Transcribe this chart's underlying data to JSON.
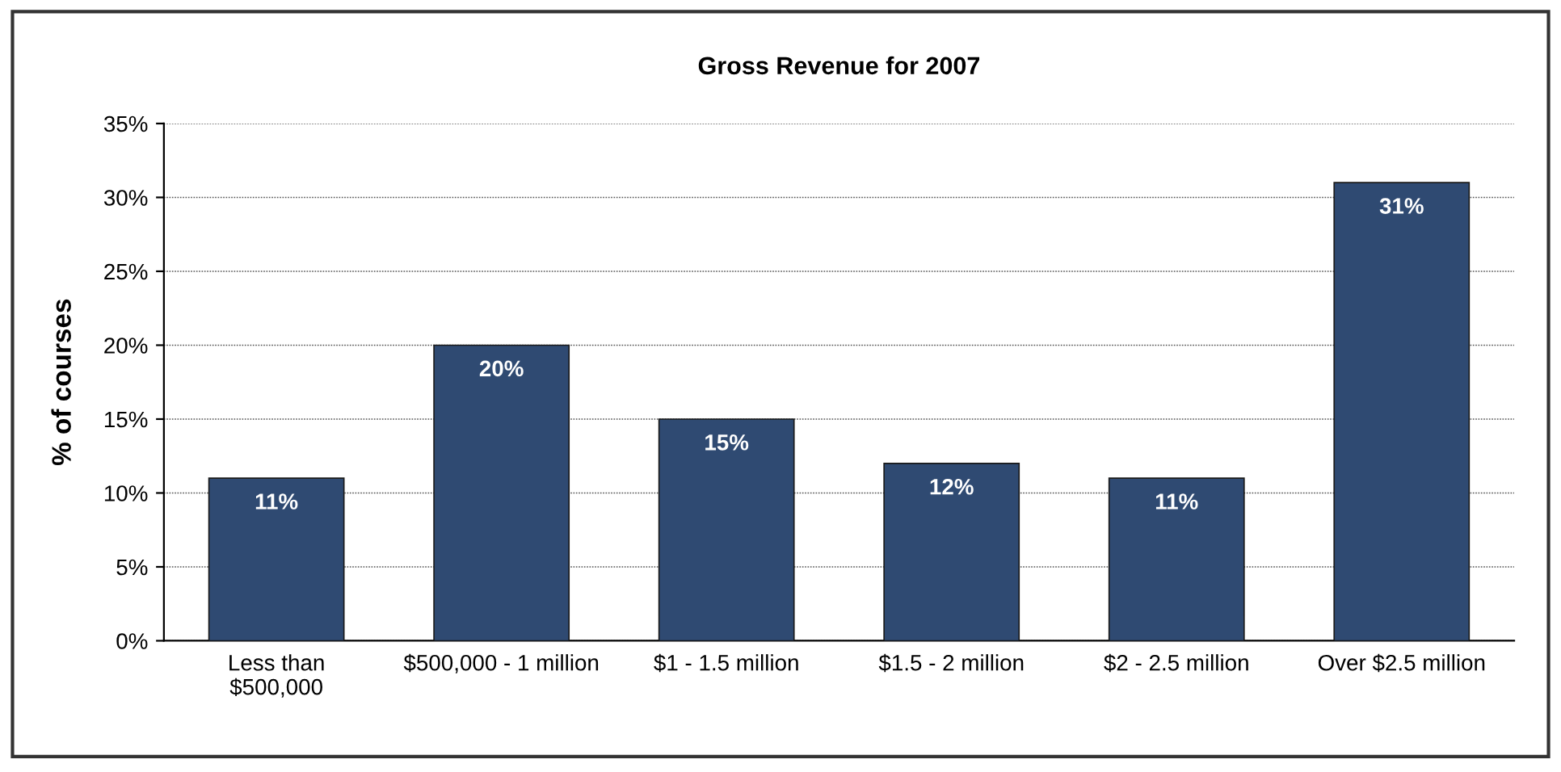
{
  "chart_data": {
    "type": "bar",
    "title": "Gross Revenue for 2007",
    "ylabel": "% of courses",
    "categories": [
      "Less than\n$500,000",
      "$500,000 - 1 million",
      "$1 - 1.5 million",
      "$1.5 - 2 million",
      "$2 - 2.5 million",
      "Over $2.5 million"
    ],
    "values": [
      11,
      20,
      15,
      12,
      11,
      31
    ],
    "value_labels": [
      "11%",
      "20%",
      "15%",
      "12%",
      "11%",
      "31%"
    ],
    "color": "#2f4a72",
    "ylim": [
      0,
      35
    ],
    "yticks": [
      {
        "value": 0,
        "label": "0%"
      },
      {
        "value": 5,
        "label": "5%"
      },
      {
        "value": 10,
        "label": "10%"
      },
      {
        "value": 15,
        "label": "15%"
      },
      {
        "value": 20,
        "label": "20%"
      },
      {
        "value": 25,
        "label": "25%"
      },
      {
        "value": 30,
        "label": "30%"
      },
      {
        "value": 35,
        "label": "35%"
      }
    ],
    "grid": "y",
    "legend": false
  }
}
